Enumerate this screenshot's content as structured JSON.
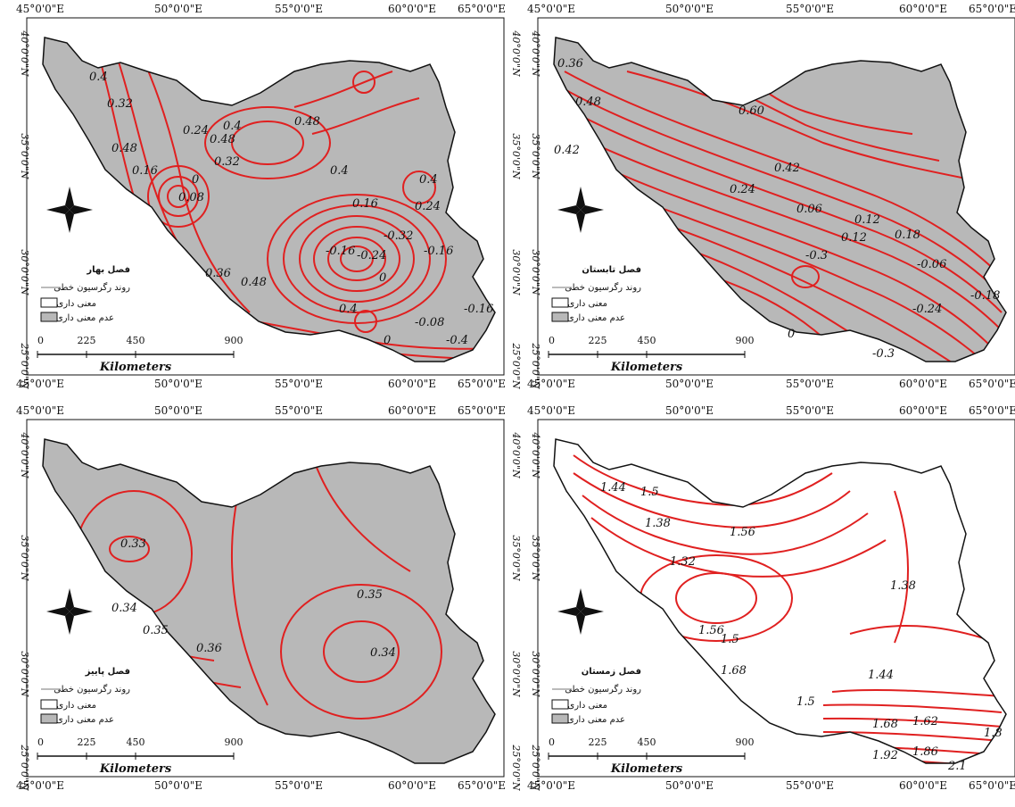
{
  "colors": {
    "land_nonsig": "#b8b8b8",
    "land_sig": "#ffffff",
    "contour": "#e02020",
    "border": "#111111"
  },
  "panels": [
    {
      "id": "spring",
      "season_label": "فصل بهار",
      "land": "nonsig",
      "lon_ticks": [
        "45°0'0\"E",
        "50°0'0\"E",
        "55°0'0\"E",
        "60°0'0\"E",
        "65°0'0\"E"
      ],
      "lat_ticks": [
        "40°0'0\"N",
        "35°0'0\"N",
        "30°0'0\"N",
        "25°0'0\"N"
      ],
      "contour_labels": [
        "0.4",
        "0.32",
        "0.48",
        "0.16",
        "0.24",
        "0.48",
        "0.32",
        "0.4",
        "0.48",
        "0",
        "0.08",
        "0.4",
        "0.4",
        "0.24",
        "0.16",
        "-0.32",
        "-0.16",
        "-0.24",
        "-0.16",
        "0.36",
        "0.48",
        "0",
        "0.4",
        "-0.08",
        "-0.16",
        "-0.4",
        "0"
      ],
      "legend": {
        "trend": "روند رگرسیون خطی",
        "sig": "معنی داری",
        "nonsig": "عدم معنی داری"
      },
      "scale": {
        "ticks": [
          "0",
          "225",
          "450",
          "900"
        ],
        "unit": "Kilometers"
      }
    },
    {
      "id": "summer",
      "season_label": "فصل تابستان",
      "land": "nonsig",
      "lon_ticks": [
        "45°0'0\"E",
        "50°0'0\"E",
        "55°0'0\"E",
        "60°0'0\"E",
        "65°0'0\"E"
      ],
      "lat_ticks": [
        "40°0'0\"N",
        "35°0'0\"N",
        "30°0'0\"N",
        "25°0'0\"N"
      ],
      "contour_labels": [
        "0.36",
        "0.48",
        "0.42",
        "0.60",
        "0.42",
        "0.24",
        "0.06",
        "0.12",
        "0.18",
        "0.12",
        "-0.06",
        "-0.3",
        "-0.24",
        "-0.18",
        "0",
        "-0.3"
      ],
      "legend": {
        "trend": "روند رگرسیون خطی",
        "sig": "معنی داری",
        "nonsig": "عدم معنی داری"
      },
      "scale": {
        "ticks": [
          "0",
          "225",
          "450",
          "900"
        ],
        "unit": "Kilometers"
      }
    },
    {
      "id": "autumn",
      "season_label": "فصل پاییز",
      "land": "nonsig",
      "lon_ticks": [
        "45°0'0\"E",
        "50°0'0\"E",
        "55°0'0\"E",
        "60°0'0\"E",
        "65°0'0\"E"
      ],
      "lat_ticks": [
        "40°0'0\"N",
        "35°0'0\"N",
        "30°0'0\"N",
        "25°0'0\"N"
      ],
      "contour_labels": [
        "0.33",
        "0.34",
        "0.35",
        "0.36",
        "0.35",
        "0.34"
      ],
      "legend": {
        "trend": "روند رگرسیون خطی",
        "sig": "معنی داری",
        "nonsig": "عدم معنی داری"
      },
      "scale": {
        "ticks": [
          "0",
          "225",
          "450",
          "900"
        ],
        "unit": "Kilometers"
      }
    },
    {
      "id": "winter",
      "season_label": "فصل زمستان",
      "land": "sig",
      "lon_ticks": [
        "45°0'0\"E",
        "50°0'0\"E",
        "55°0'0\"E",
        "60°0'0\"E",
        "65°0'0\"E"
      ],
      "lat_ticks": [
        "40°0'0\"N",
        "35°0'0\"N",
        "30°0'0\"N",
        "25°0'0\"N"
      ],
      "contour_labels": [
        "1.44",
        "1.5",
        "1.38",
        "1.56",
        "1.32",
        "1.38",
        "1.56",
        "1.5",
        "1.68",
        "1.44",
        "1.5",
        "1.68",
        "1.62",
        "1.8",
        "1.92",
        "1.86",
        "2.1"
      ],
      "legend": {
        "trend": "روند رگرسیون خطی",
        "sig": "معنی داری",
        "nonsig": "عدم معنی داری"
      },
      "scale": {
        "ticks": [
          "0",
          "225",
          "450",
          "900"
        ],
        "unit": "Kilometers"
      }
    }
  ]
}
